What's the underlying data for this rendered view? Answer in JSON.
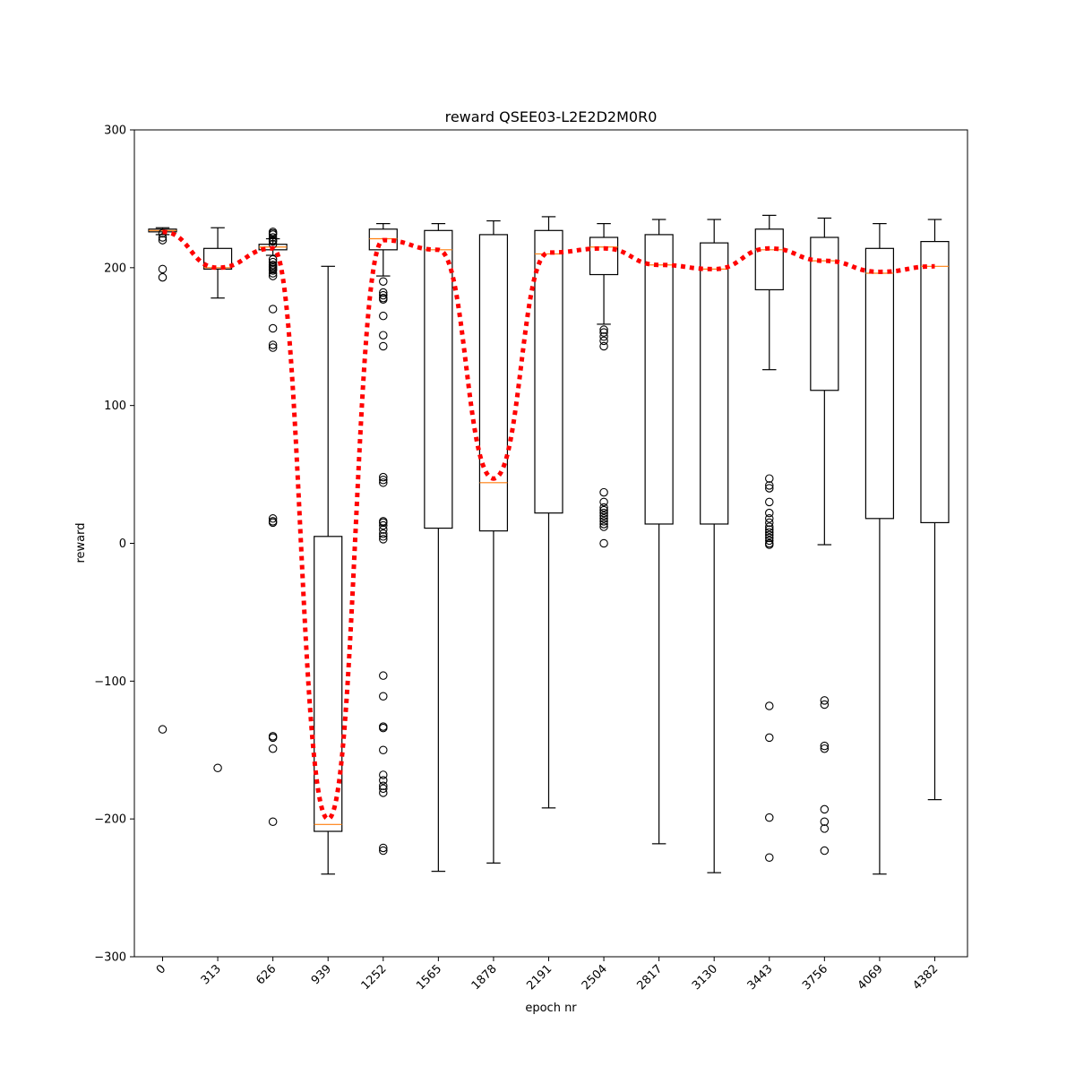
{
  "chart_data": {
    "type": "box",
    "title": "reward QSEE03-L2E2D2M0R0",
    "xlabel": "epoch nr",
    "ylabel": "reward",
    "ylim": [
      -300,
      300
    ],
    "yticks": [
      300,
      200,
      100,
      0,
      -100,
      -200,
      -300
    ],
    "ytick_labels": [
      "300",
      "200",
      "100",
      "0",
      "−100",
      "−200",
      "−300"
    ],
    "categories": [
      "0",
      "313",
      "626",
      "939",
      "1252",
      "1565",
      "1878",
      "2191",
      "2504",
      "2817",
      "3130",
      "3443",
      "3756",
      "4069",
      "4382"
    ],
    "grid": false,
    "colors": {
      "box": "#000000",
      "median": "#ff7f0e",
      "mean_line": "#ff0000"
    },
    "boxes": [
      {
        "whislo": 224,
        "q1": 226,
        "med": 227,
        "q3": 228,
        "whishi": 229,
        "mean": 226,
        "fliers": [
          225,
          222,
          220,
          199,
          193,
          -135
        ]
      },
      {
        "whislo": 178,
        "q1": 199,
        "med": 200,
        "q3": 214,
        "whishi": 229,
        "mean": 200,
        "fliers": [
          -163
        ]
      },
      {
        "whislo": 209,
        "q1": 213,
        "med": 215,
        "q3": 217,
        "whishi": 221,
        "mean": 214,
        "fliers": [
          226,
          225,
          224,
          222,
          220,
          219,
          217,
          206,
          204,
          202,
          201,
          200,
          199,
          198,
          196,
          194,
          170,
          156,
          144,
          142,
          18,
          16,
          15,
          -140,
          -141,
          -149,
          -202
        ]
      },
      {
        "whislo": -240,
        "q1": -209,
        "med": -204,
        "q3": 5,
        "whishi": 201,
        "mean": -200,
        "fliers": []
      },
      {
        "whislo": 194,
        "q1": 213,
        "med": 221,
        "q3": 228,
        "whishi": 232,
        "mean": 220,
        "fliers": [
          190,
          182,
          180,
          178,
          177,
          165,
          151,
          143,
          48,
          46,
          44,
          16,
          15,
          13,
          10,
          7,
          5,
          3,
          -96,
          -111,
          -133,
          -134,
          -150,
          -168,
          -172,
          -176,
          -178,
          -181,
          -221,
          -223
        ]
      },
      {
        "whislo": -238,
        "q1": 11,
        "med": 213,
        "q3": 227,
        "whishi": 232,
        "mean": 213,
        "fliers": []
      },
      {
        "whislo": -232,
        "q1": 9,
        "med": 44,
        "q3": 224,
        "whishi": 234,
        "mean": 47,
        "fliers": []
      },
      {
        "whislo": -192,
        "q1": 22,
        "med": 210,
        "q3": 227,
        "whishi": 237,
        "mean": 211,
        "fliers": []
      },
      {
        "whislo": 159,
        "q1": 195,
        "med": 215,
        "q3": 222,
        "whishi": 232,
        "mean": 214,
        "fliers": [
          155,
          153,
          150,
          147,
          143,
          37,
          30,
          26,
          24,
          22,
          20,
          18,
          16,
          14,
          12,
          0
        ]
      },
      {
        "whislo": -218,
        "q1": 14,
        "med": 202,
        "q3": 224,
        "whishi": 235,
        "mean": 202,
        "fliers": []
      },
      {
        "whislo": -239,
        "q1": 14,
        "med": 199,
        "q3": 218,
        "whishi": 235,
        "mean": 199,
        "fliers": []
      },
      {
        "whislo": 126,
        "q1": 184,
        "med": 213,
        "q3": 228,
        "whishi": 238,
        "mean": 214,
        "fliers": [
          47,
          42,
          40,
          30,
          22,
          18,
          15,
          12,
          10,
          8,
          6,
          4,
          2,
          0,
          -1,
          -118,
          -141,
          -199,
          -228
        ]
      },
      {
        "whislo": -1,
        "q1": 111,
        "med": 205,
        "q3": 222,
        "whishi": 236,
        "mean": 205,
        "fliers": [
          -114,
          -117,
          -147,
          -149,
          -193,
          -202,
          -207,
          -223
        ]
      },
      {
        "whislo": -240,
        "q1": 18,
        "med": 196,
        "q3": 214,
        "whishi": 232,
        "mean": 197,
        "fliers": []
      },
      {
        "whislo": -186,
        "q1": 15,
        "med": 201,
        "q3": 219,
        "whishi": 235,
        "mean": 201,
        "fliers": []
      }
    ]
  }
}
